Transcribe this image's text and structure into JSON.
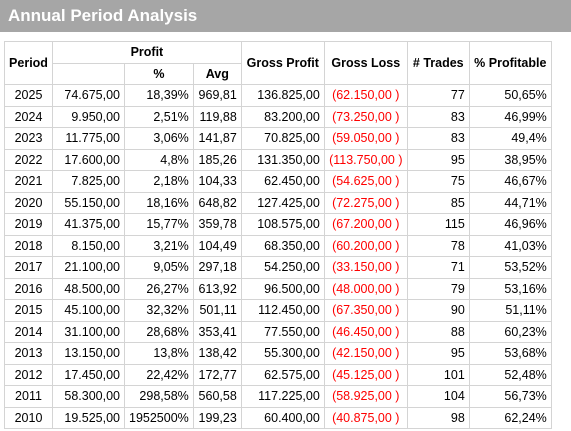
{
  "title": "Annual Period Analysis",
  "headers": {
    "period": "Period",
    "profit": "Profit",
    "pct": "%",
    "avg": "Avg",
    "gross_profit": "Gross Profit",
    "gross_loss": "Gross Loss",
    "trades": "# Trades",
    "pct_profitable": "% Profitable"
  },
  "colors": {
    "title_bg": "#a6a6a6",
    "loss_text": "#ff0000"
  },
  "rows": [
    {
      "period": "2025",
      "profit": "74.675,00",
      "pct": "18,39%",
      "avg": "969,81",
      "gross_profit": "136.825,00",
      "gross_loss": "(62.150,00 )",
      "trades": "77",
      "pct_profitable": "50,65%"
    },
    {
      "period": "2024",
      "profit": "9.950,00",
      "pct": "2,51%",
      "avg": "119,88",
      "gross_profit": "83.200,00",
      "gross_loss": "(73.250,00 )",
      "trades": "83",
      "pct_profitable": "46,99%"
    },
    {
      "period": "2023",
      "profit": "11.775,00",
      "pct": "3,06%",
      "avg": "141,87",
      "gross_profit": "70.825,00",
      "gross_loss": "(59.050,00 )",
      "trades": "83",
      "pct_profitable": "49,4%"
    },
    {
      "period": "2022",
      "profit": "17.600,00",
      "pct": "4,8%",
      "avg": "185,26",
      "gross_profit": "131.350,00",
      "gross_loss": "(113.750,00 )",
      "trades": "95",
      "pct_profitable": "38,95%"
    },
    {
      "period": "2021",
      "profit": "7.825,00",
      "pct": "2,18%",
      "avg": "104,33",
      "gross_profit": "62.450,00",
      "gross_loss": "(54.625,00 )",
      "trades": "75",
      "pct_profitable": "46,67%"
    },
    {
      "period": "2020",
      "profit": "55.150,00",
      "pct": "18,16%",
      "avg": "648,82",
      "gross_profit": "127.425,00",
      "gross_loss": "(72.275,00 )",
      "trades": "85",
      "pct_profitable": "44,71%"
    },
    {
      "period": "2019",
      "profit": "41.375,00",
      "pct": "15,77%",
      "avg": "359,78",
      "gross_profit": "108.575,00",
      "gross_loss": "(67.200,00 )",
      "trades": "115",
      "pct_profitable": "46,96%"
    },
    {
      "period": "2018",
      "profit": "8.150,00",
      "pct": "3,21%",
      "avg": "104,49",
      "gross_profit": "68.350,00",
      "gross_loss": "(60.200,00 )",
      "trades": "78",
      "pct_profitable": "41,03%"
    },
    {
      "period": "2017",
      "profit": "21.100,00",
      "pct": "9,05%",
      "avg": "297,18",
      "gross_profit": "54.250,00",
      "gross_loss": "(33.150,00 )",
      "trades": "71",
      "pct_profitable": "53,52%"
    },
    {
      "period": "2016",
      "profit": "48.500,00",
      "pct": "26,27%",
      "avg": "613,92",
      "gross_profit": "96.500,00",
      "gross_loss": "(48.000,00 )",
      "trades": "79",
      "pct_profitable": "53,16%"
    },
    {
      "period": "2015",
      "profit": "45.100,00",
      "pct": "32,32%",
      "avg": "501,11",
      "gross_profit": "112.450,00",
      "gross_loss": "(67.350,00 )",
      "trades": "90",
      "pct_profitable": "51,11%"
    },
    {
      "period": "2014",
      "profit": "31.100,00",
      "pct": "28,68%",
      "avg": "353,41",
      "gross_profit": "77.550,00",
      "gross_loss": "(46.450,00 )",
      "trades": "88",
      "pct_profitable": "60,23%"
    },
    {
      "period": "2013",
      "profit": "13.150,00",
      "pct": "13,8%",
      "avg": "138,42",
      "gross_profit": "55.300,00",
      "gross_loss": "(42.150,00 )",
      "trades": "95",
      "pct_profitable": "53,68%"
    },
    {
      "period": "2012",
      "profit": "17.450,00",
      "pct": "22,42%",
      "avg": "172,77",
      "gross_profit": "62.575,00",
      "gross_loss": "(45.125,00 )",
      "trades": "101",
      "pct_profitable": "52,48%"
    },
    {
      "period": "2011",
      "profit": "58.300,00",
      "pct": "298,58%",
      "avg": "560,58",
      "gross_profit": "117.225,00",
      "gross_loss": "(58.925,00 )",
      "trades": "104",
      "pct_profitable": "56,73%"
    },
    {
      "period": "2010",
      "profit": "19.525,00",
      "pct": "1952500%",
      "avg": "199,23",
      "gross_profit": "60.400,00",
      "gross_loss": "(40.875,00 )",
      "trades": "98",
      "pct_profitable": "62,24%"
    }
  ]
}
